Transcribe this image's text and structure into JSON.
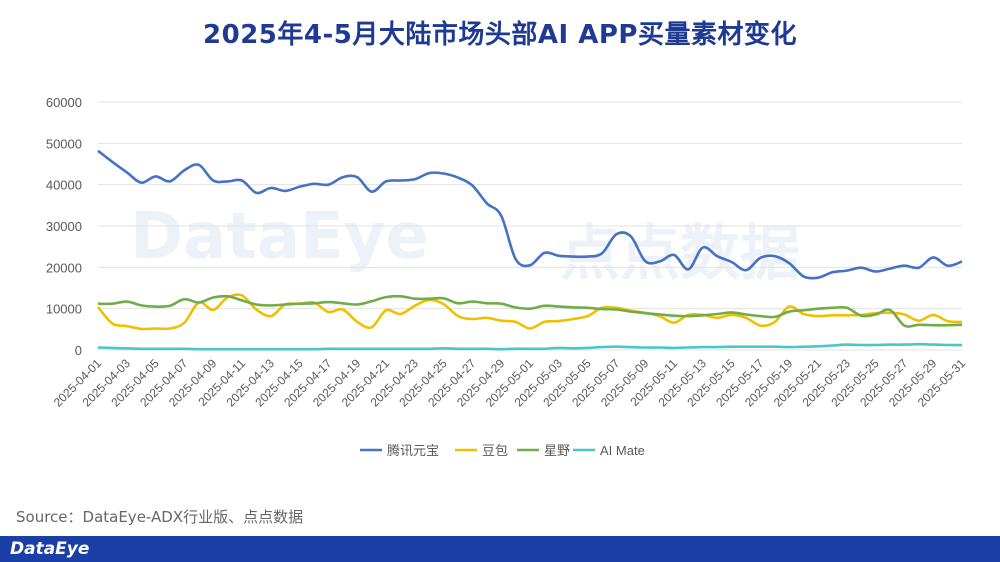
{
  "title": "2025年4-5月大陆市场头部AI APP买量素材变化",
  "source": "Source：DataEye-ADX行业版、点点数据",
  "footer_logo": "DataEye",
  "watermark_left": "DataEye",
  "watermark_right": "点点数据",
  "chart_data": {
    "type": "line",
    "title": "2025年4-5月大陆市场头部AI APP买量素材变化",
    "ylim": [
      0,
      60000
    ],
    "yticks": [
      0,
      10000,
      20000,
      30000,
      40000,
      50000,
      60000
    ],
    "grid": "horizontal",
    "legend_position": "bottom",
    "x": [
      "2025-04-01",
      "2025-04-02",
      "2025-04-03",
      "2025-04-04",
      "2025-04-05",
      "2025-04-06",
      "2025-04-07",
      "2025-04-08",
      "2025-04-09",
      "2025-04-10",
      "2025-04-11",
      "2025-04-12",
      "2025-04-13",
      "2025-04-14",
      "2025-04-15",
      "2025-04-16",
      "2025-04-17",
      "2025-04-18",
      "2025-04-19",
      "2025-04-20",
      "2025-04-21",
      "2025-04-22",
      "2025-04-23",
      "2025-04-24",
      "2025-04-25",
      "2025-04-26",
      "2025-04-27",
      "2025-04-28",
      "2025-04-29",
      "2025-04-30",
      "2025-05-01",
      "2025-05-02",
      "2025-05-03",
      "2025-05-04",
      "2025-05-05",
      "2025-05-06",
      "2025-05-07",
      "2025-05-08",
      "2025-05-09",
      "2025-05-10",
      "2025-05-11",
      "2025-05-12",
      "2025-05-13",
      "2025-05-14",
      "2025-05-15",
      "2025-05-16",
      "2025-05-17",
      "2025-05-18",
      "2025-05-19",
      "2025-05-20",
      "2025-05-21",
      "2025-05-22",
      "2025-05-23",
      "2025-05-24",
      "2025-05-25",
      "2025-05-26",
      "2025-05-27",
      "2025-05-28",
      "2025-05-29",
      "2025-05-30",
      "2025-05-31"
    ],
    "xtick_labels": [
      "2025-04-01",
      "2025-04-03",
      "2025-04-05",
      "2025-04-07",
      "2025-04-09",
      "2025-04-11",
      "2025-04-13",
      "2025-04-15",
      "2025-04-17",
      "2025-04-19",
      "2025-04-21",
      "2025-04-23",
      "2025-04-25",
      "2025-04-27",
      "2025-04-29",
      "2025-05-01",
      "2025-05-03",
      "2025-05-05",
      "2025-05-07",
      "2025-05-09",
      "2025-05-11",
      "2025-05-13",
      "2025-05-15",
      "2025-05-17",
      "2025-05-19",
      "2025-05-21",
      "2025-05-23",
      "2025-05-25",
      "2025-05-27",
      "2025-05-29",
      "2025-05-31"
    ],
    "series": [
      {
        "name": "腾讯元宝",
        "color": "#4472c4",
        "values": [
          48200,
          45500,
          43000,
          40500,
          42000,
          40800,
          43500,
          44800,
          41000,
          40800,
          41000,
          38000,
          39200,
          38500,
          39500,
          40200,
          40000,
          41800,
          41800,
          38300,
          40800,
          41000,
          41300,
          42800,
          42700,
          41700,
          39800,
          35500,
          32500,
          22000,
          20500,
          23500,
          22800,
          22600,
          22600,
          23400,
          28000,
          27500,
          21500,
          21400,
          23000,
          19500,
          24800,
          22700,
          21300,
          19300,
          22300,
          22700,
          21000,
          17800,
          17500,
          18800,
          19200,
          19900,
          19000,
          19700,
          20400,
          19900,
          22400,
          20400,
          21400
        ]
      },
      {
        "name": "豆包",
        "color": "#f0c000",
        "values": [
          10400,
          6400,
          5800,
          5100,
          5200,
          5200,
          6600,
          11500,
          9700,
          12700,
          13200,
          9800,
          8200,
          11000,
          11200,
          11500,
          9200,
          9800,
          6800,
          5500,
          9600,
          8700,
          10700,
          12100,
          11100,
          8200,
          7500,
          7800,
          7100,
          6800,
          5200,
          6800,
          7000,
          7500,
          8200,
          10200,
          10200,
          9500,
          9000,
          8200,
          6600,
          8500,
          8500,
          7800,
          8500,
          7800,
          5900,
          6800,
          10500,
          8700,
          8200,
          8400,
          8400,
          8500,
          8900,
          9000,
          8600,
          7100,
          8500,
          7000,
          6800
        ]
      },
      {
        "name": "星野",
        "color": "#70ad47",
        "values": [
          11200,
          11200,
          11700,
          10800,
          10500,
          10700,
          12300,
          11500,
          12700,
          13000,
          12000,
          11000,
          10800,
          11000,
          11200,
          11300,
          11600,
          11300,
          11000,
          11800,
          12800,
          13000,
          12400,
          12400,
          12500,
          11300,
          11700,
          11300,
          11200,
          10300,
          10000,
          10700,
          10500,
          10300,
          10200,
          9900,
          9800,
          9300,
          8900,
          8600,
          8300,
          8200,
          8400,
          8700,
          9100,
          8600,
          8200,
          8000,
          9300,
          9600,
          10000,
          10200,
          10200,
          8300,
          8600,
          9700,
          5900,
          6100,
          6000,
          6000,
          6100
        ]
      },
      {
        "name": "AI Mate",
        "color": "#4bc6c6",
        "values": [
          600,
          500,
          400,
          300,
          300,
          300,
          300,
          200,
          200,
          200,
          200,
          200,
          200,
          200,
          200,
          200,
          300,
          300,
          300,
          300,
          300,
          300,
          300,
          300,
          400,
          300,
          300,
          300,
          200,
          300,
          300,
          300,
          500,
          400,
          500,
          700,
          800,
          700,
          600,
          600,
          500,
          600,
          700,
          700,
          800,
          800,
          800,
          800,
          700,
          800,
          900,
          1100,
          1300,
          1200,
          1200,
          1300,
          1300,
          1400,
          1300,
          1200,
          1200
        ]
      }
    ]
  }
}
